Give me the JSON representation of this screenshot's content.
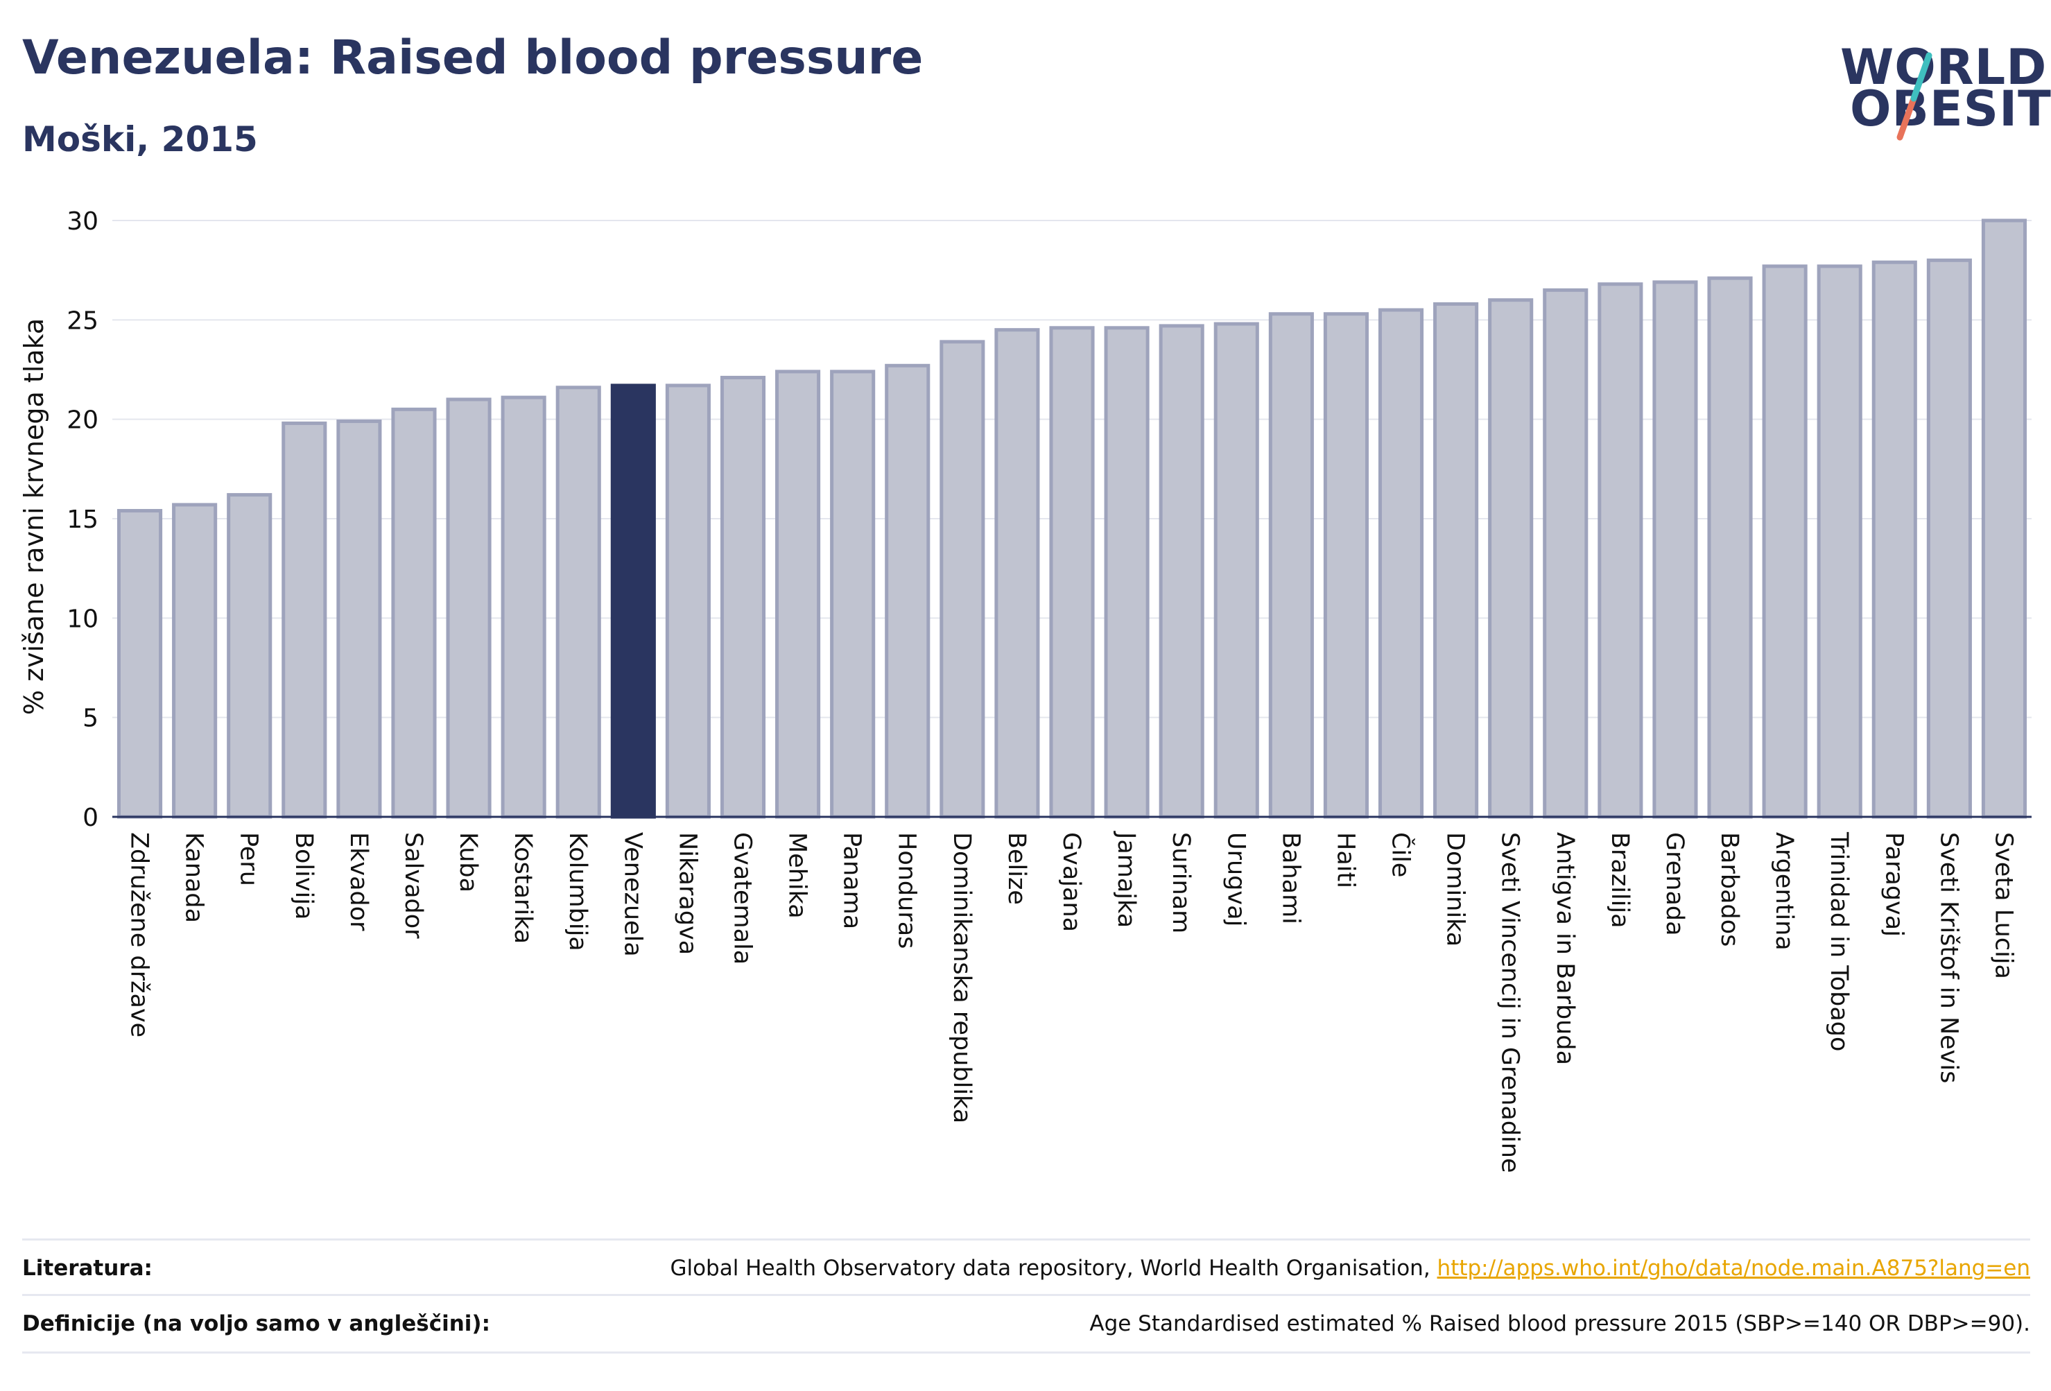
{
  "header": {
    "title": "Venezuela: Raised blood pressure",
    "subtitle": "Moški, 2015"
  },
  "logo": {
    "line1": "WORLD",
    "line2": "OBESITY"
  },
  "colors": {
    "bar_fill": "#c0c3d0",
    "bar_stroke": "#9ea3bc",
    "highlight": "#2a3560",
    "text": "#2a3560",
    "link": "#e8a500"
  },
  "chart_data": {
    "type": "bar",
    "ylabel": "% zvišane ravni krvnega tlaka",
    "ylim": [
      0,
      30
    ],
    "yticks": [
      "0",
      "5",
      "10",
      "15",
      "20",
      "25",
      "30"
    ],
    "grid": true,
    "highlight_category": "Venezuela",
    "categories": [
      "Združene države",
      "Kanada",
      "Peru",
      "Bolivija",
      "Ekvador",
      "Salvador",
      "Kuba",
      "Kostarika",
      "Kolumbija",
      "Venezuela",
      "Nikaragva",
      "Gvatemala",
      "Mehika",
      "Panama",
      "Honduras",
      "Dominikanska republika",
      "Belize",
      "Gvajana",
      "Jamajka",
      "Surinam",
      "Urugvaj",
      "Bahami",
      "Haiti",
      "Čile",
      "Dominika",
      "Sveti Vincencij in Grenadine",
      "Antigva in Barbuda",
      "Brazilija",
      "Grenada",
      "Barbados",
      "Argentina",
      "Trinidad in Tobago",
      "Paragvaj",
      "Sveti Krištof in Nevis",
      "Sveta Lucija"
    ],
    "values": [
      15.4,
      15.7,
      16.2,
      19.8,
      19.9,
      20.5,
      21.0,
      21.1,
      21.6,
      21.7,
      21.7,
      22.1,
      22.4,
      22.4,
      22.7,
      23.9,
      24.5,
      24.6,
      24.6,
      24.7,
      24.8,
      25.3,
      25.3,
      25.5,
      25.8,
      26.0,
      26.5,
      26.8,
      26.9,
      27.1,
      27.7,
      27.7,
      27.9,
      28.0,
      30.0
    ]
  },
  "footer": {
    "lit_label": "Literatura:",
    "lit_text": "Global Health Observatory data repository, World Health Organisation, ",
    "lit_link": "http://apps.who.int/gho/data/node.main.A875?lang=en",
    "def_label": "Definicije (na voljo samo v angleščini):",
    "def_text": "Age Standardised estimated % Raised blood pressure 2015 (SBP>=140 OR DBP>=90)."
  }
}
